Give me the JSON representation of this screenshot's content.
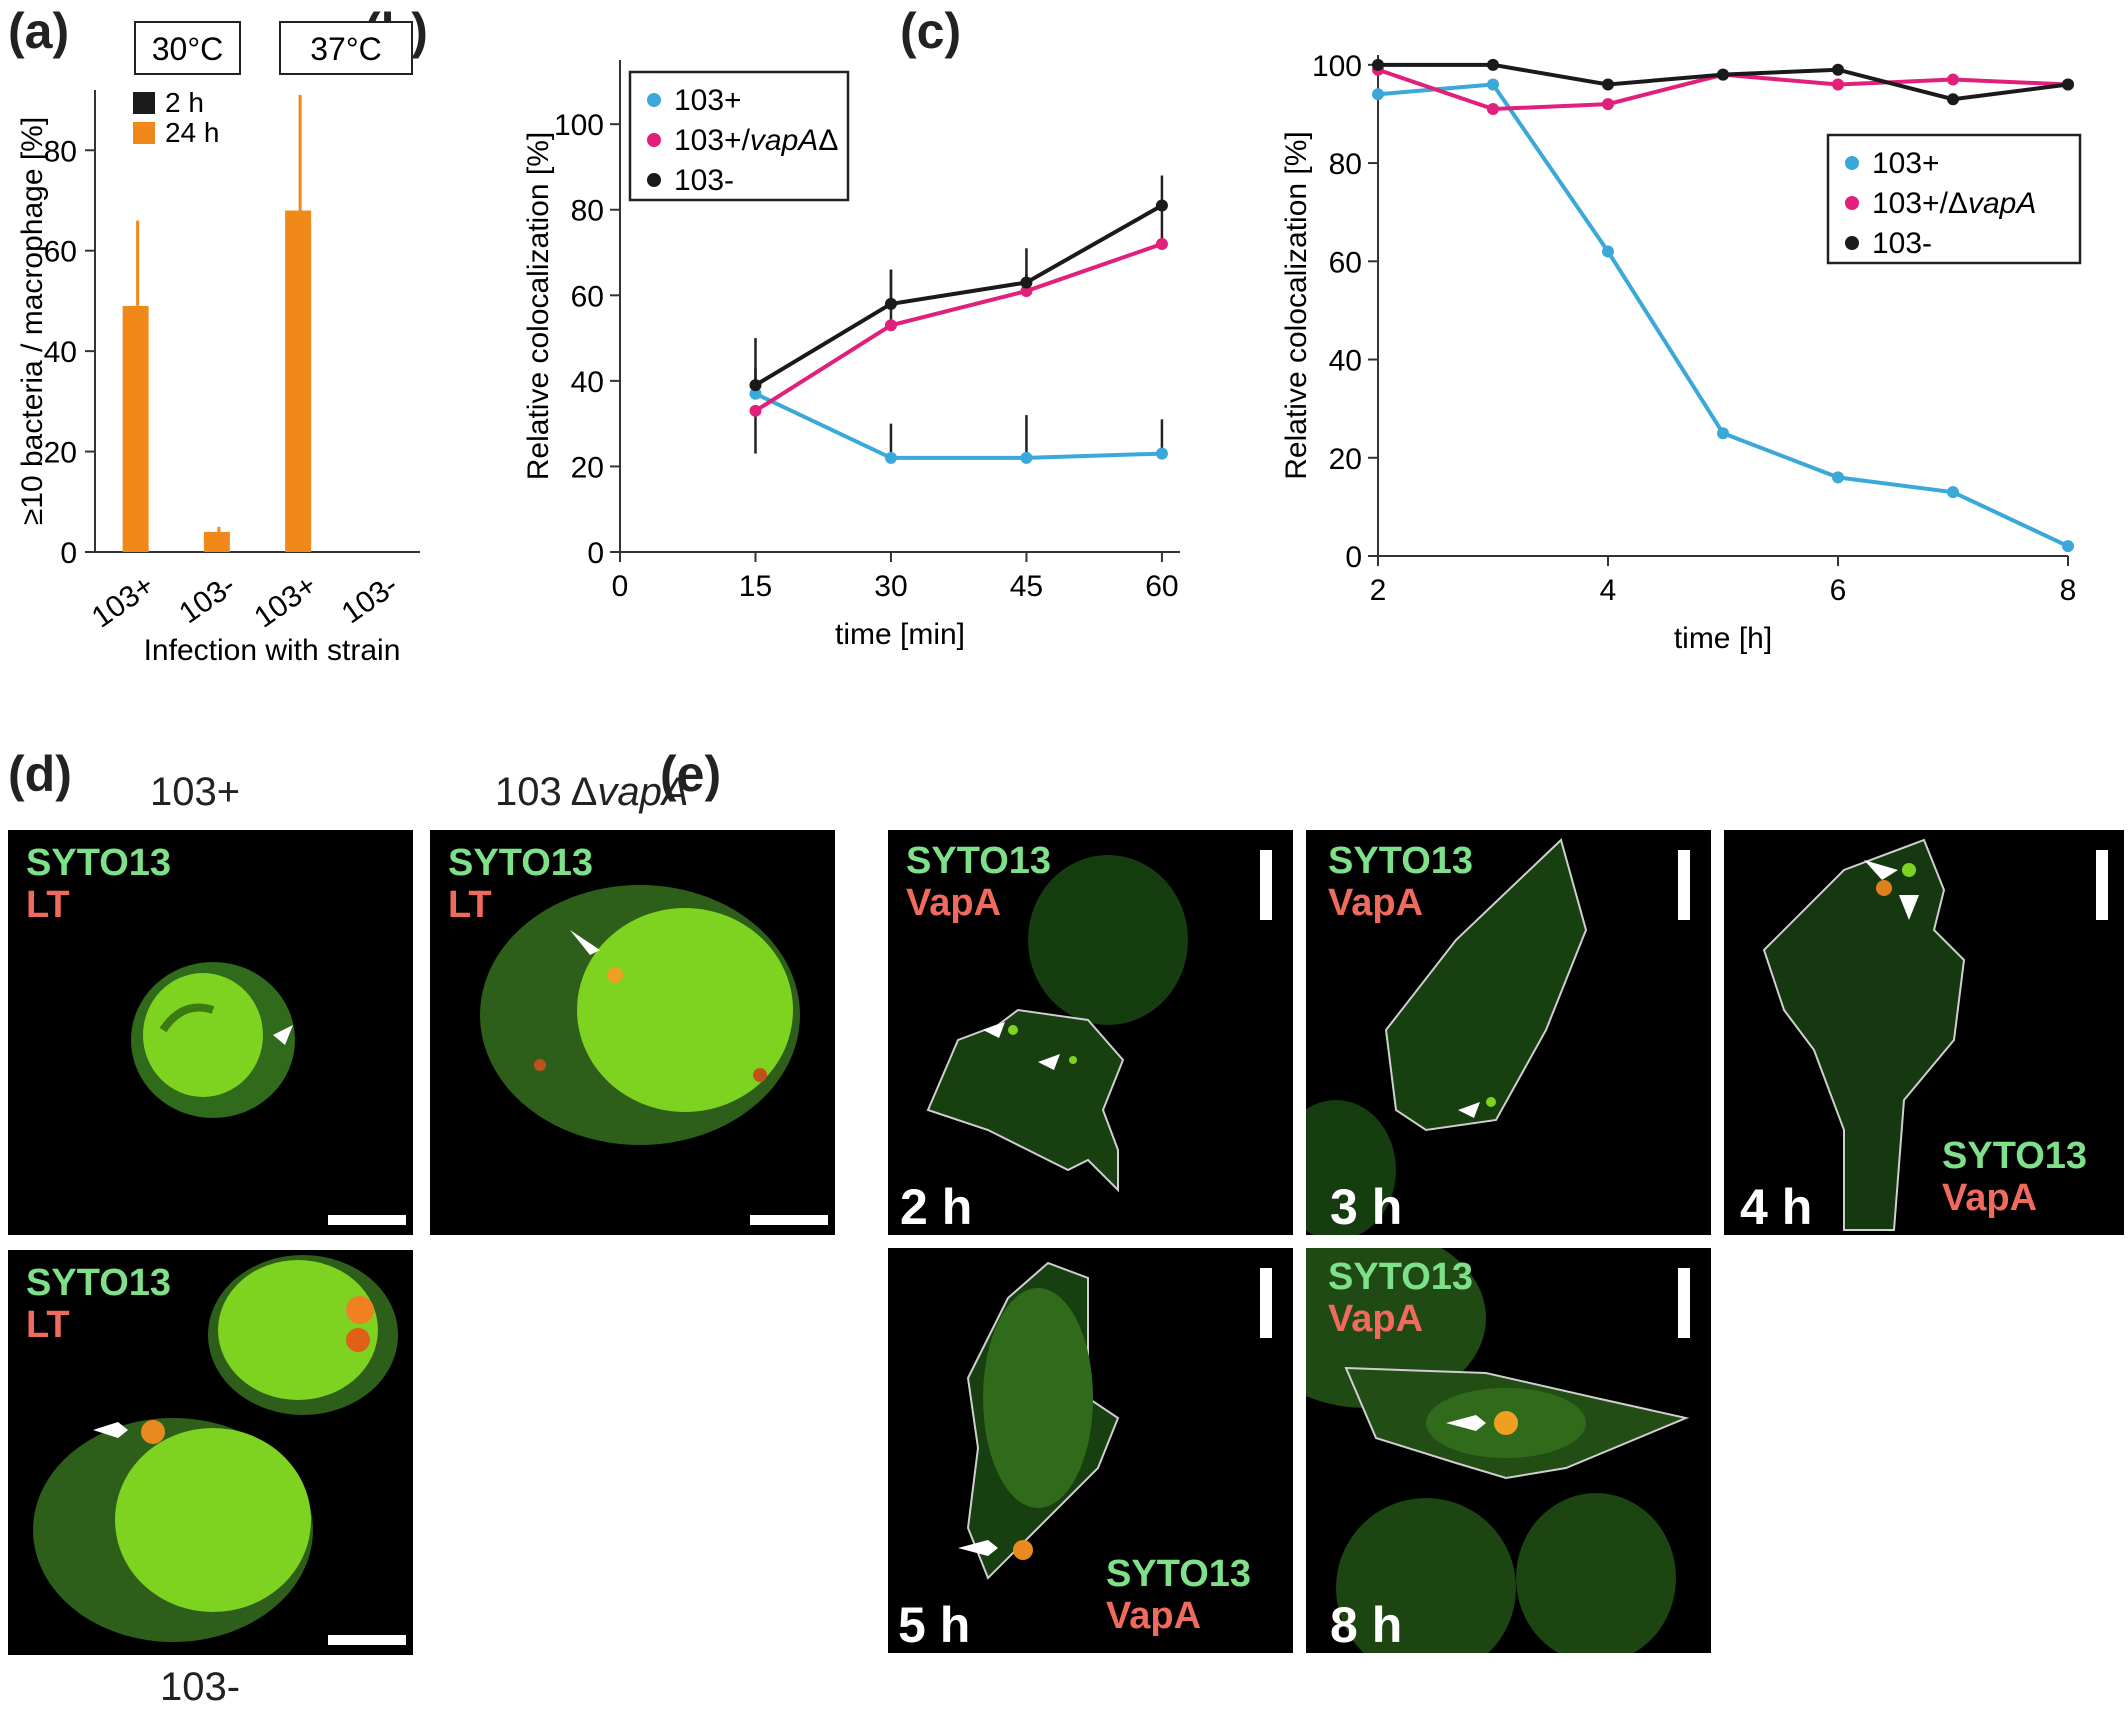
{
  "panels": {
    "a": {
      "letter": "(a)",
      "temps": [
        "30°C",
        "37°C"
      ],
      "legend": [
        {
          "label": "2 h",
          "color": "#1a1a1a"
        },
        {
          "label": "24 h",
          "color": "#f0891a"
        }
      ],
      "ylabel": "≥10 bacteria / macrophage [%]",
      "xlabel": "Infection with strain"
    },
    "b": {
      "letter": "(b)"
    },
    "c": {
      "letter": "(c)"
    },
    "d": {
      "letter": "(d)",
      "title_left": "103+",
      "title_right_prefix": "103 ",
      "title_right_delta": "Δ",
      "title_right_italic": "vapA",
      "bottom_caption": "103-",
      "stain_green": "SYTO13",
      "stain_red": "LT"
    },
    "e": {
      "letter": "(e)",
      "stain_green": "SYTO13",
      "stain_red": "VapA",
      "times": [
        "2 h",
        "3 h",
        "4 h",
        "5 h",
        "8 h"
      ]
    }
  },
  "chart_data": [
    {
      "panel": "a",
      "type": "bar",
      "categories": [
        "103+",
        "103-",
        "103+",
        "103-"
      ],
      "groups": [
        "30°C",
        "30°C",
        "37°C",
        "37°C"
      ],
      "series": [
        {
          "name": "2 h",
          "values": [
            0,
            0,
            0,
            0
          ]
        },
        {
          "name": "24 h",
          "values": [
            49,
            4,
            68,
            0
          ],
          "errors": [
            17,
            1,
            23,
            0
          ]
        }
      ],
      "ylabel": "≥10 bacteria / macrophage [%]",
      "xlabel": "Infection with strain",
      "ylim": [
        0,
        92
      ],
      "yticks": [
        0,
        20,
        40,
        60,
        80
      ]
    },
    {
      "panel": "b",
      "type": "line",
      "xlabel": "time [min]",
      "ylabel": "Relative colocalization [%]",
      "xlim": [
        0,
        62
      ],
      "ylim": [
        0,
        115
      ],
      "xticks": [
        0,
        15,
        30,
        45,
        60
      ],
      "yticks": [
        0,
        20,
        40,
        60,
        80,
        100
      ],
      "legend_position": "top-left",
      "series": [
        {
          "name": "103+",
          "color": "#3aa8d8",
          "x": [
            15,
            30,
            45,
            60
          ],
          "y": [
            37,
            22,
            22,
            23
          ],
          "err": [
            13,
            8,
            10,
            8
          ]
        },
        {
          "name": "103+/vapAΔ",
          "name_plain": "103+/",
          "name_italic": "vapA",
          "name_suffix": "Δ",
          "color": "#e0207a",
          "x": [
            15,
            30,
            45,
            60
          ],
          "y": [
            33,
            53,
            61,
            72
          ],
          "err": [
            10,
            13,
            10,
            8
          ]
        },
        {
          "name": "103-",
          "color": "#1a1a1a",
          "x": [
            15,
            30,
            45,
            60
          ],
          "y": [
            39,
            58,
            63,
            81
          ],
          "err": [
            4,
            8,
            2,
            7
          ]
        }
      ]
    },
    {
      "panel": "c",
      "type": "line",
      "xlabel": "time [h]",
      "ylabel": "Relative colocalization [%]",
      "xlim": [
        2,
        8
      ],
      "ylim": [
        0,
        102
      ],
      "xticks": [
        2,
        4,
        6,
        8
      ],
      "yticks": [
        0,
        20,
        40,
        60,
        80,
        100
      ],
      "legend_position": "right",
      "series": [
        {
          "name": "103+",
          "color": "#3aa8d8",
          "x": [
            2,
            3,
            4,
            5,
            6,
            7,
            8
          ],
          "y": [
            94,
            96,
            62,
            25,
            16,
            13,
            2
          ]
        },
        {
          "name": "103+/ΔvapA",
          "name_plain": "103+/Δ",
          "name_italic": "vapA",
          "name_suffix": "",
          "color": "#e0207a",
          "x": [
            2,
            3,
            4,
            5,
            6,
            7,
            8
          ],
          "y": [
            99,
            91,
            92,
            98,
            96,
            97,
            96
          ]
        },
        {
          "name": "103-",
          "color": "#1a1a1a",
          "x": [
            2,
            3,
            4,
            5,
            6,
            7,
            8
          ],
          "y": [
            100,
            100,
            96,
            98,
            99,
            93,
            96
          ]
        }
      ]
    }
  ]
}
